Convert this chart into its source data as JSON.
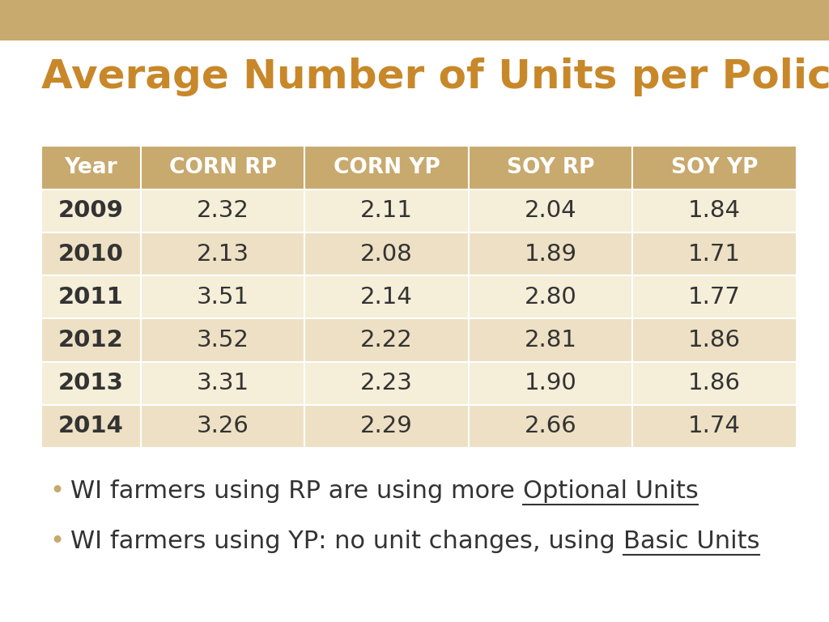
{
  "title": "Average Number of Units per Policy in WI",
  "title_color": "#C8882A",
  "title_fontsize": 36,
  "header_bg_color": "#C8A96E",
  "header_text_color": "#FFFFFF",
  "row_bg_even": "#F5EED8",
  "row_bg_odd": "#EDE0C4",
  "cell_text_color": "#333333",
  "year_text_color": "#333333",
  "col_headers": [
    "Year",
    "CORN RP",
    "CORN YP",
    "SOY RP",
    "SOY YP"
  ],
  "rows": [
    [
      "2009",
      "2.32",
      "2.11",
      "2.04",
      "1.84"
    ],
    [
      "2010",
      "2.13",
      "2.08",
      "1.89",
      "1.71"
    ],
    [
      "2011",
      "3.51",
      "2.14",
      "2.80",
      "1.77"
    ],
    [
      "2012",
      "3.52",
      "2.22",
      "2.81",
      "1.86"
    ],
    [
      "2013",
      "3.31",
      "2.23",
      "1.90",
      "1.86"
    ],
    [
      "2014",
      "3.26",
      "2.29",
      "2.66",
      "1.74"
    ]
  ],
  "bullet1_plain": "WI farmers using RP are using more ",
  "bullet1_underline": "Optional Units",
  "bullet2_plain": "WI farmers using YP: no unit changes, using ",
  "bullet2_underline": "Basic Units",
  "bullet_color": "#333333",
  "bullet_fontsize": 22,
  "bullet_dot_color": "#C8A96E",
  "top_bar_color": "#C8A96E",
  "top_bar_height": 0.065,
  "background_color": "#FFFFFF"
}
